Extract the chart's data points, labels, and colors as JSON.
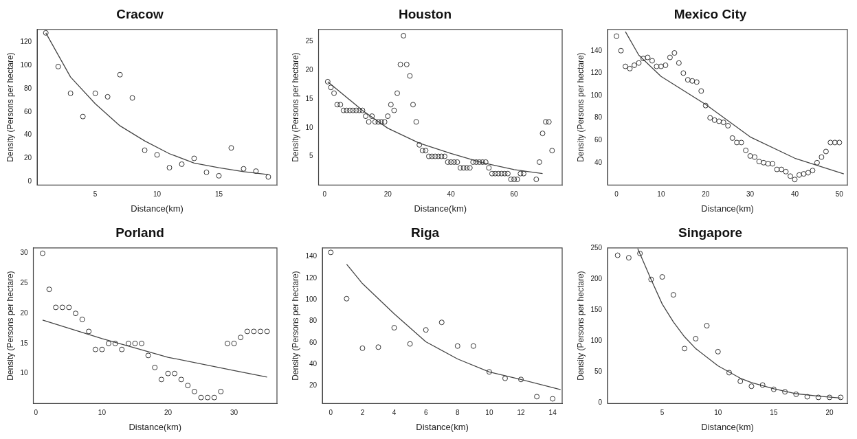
{
  "chart_data": [
    {
      "type": "scatter",
      "title": "Cracow",
      "xlabel": "Distance(km)",
      "ylabel": "Density (Persons per hectare)",
      "xlim": [
        0.3,
        19.7
      ],
      "xticks": [
        5,
        10,
        15
      ],
      "ylim": [
        -3,
        131
      ],
      "yticks": [
        0,
        20,
        40,
        60,
        80,
        100,
        120
      ],
      "grid": false,
      "legend": false,
      "series": [
        {
          "type": "scatter",
          "marker": "circle",
          "color": "#333333",
          "x": [
            1,
            2,
            3,
            4,
            5,
            6,
            7,
            8,
            9,
            10,
            11,
            12,
            13,
            14,
            15,
            16,
            17,
            18,
            19
          ],
          "values": [
            128,
            99,
            76,
            56,
            76,
            73,
            92,
            72,
            27,
            23,
            12,
            15,
            20,
            8,
            5,
            29,
            11,
            9,
            4
          ]
        },
        {
          "type": "line",
          "marker": "none",
          "color": "#444444",
          "x": [
            1,
            3,
            5,
            7,
            9,
            11,
            13,
            15,
            17,
            19
          ],
          "values": [
            128,
            90,
            67,
            48,
            35,
            24,
            16,
            12,
            8.5,
            6
          ]
        }
      ]
    },
    {
      "type": "scatter",
      "title": "Houston",
      "xlabel": "Distance(km)",
      "ylabel": "Density (Persons per hectare)",
      "xlim": [
        -1.9,
        75.2
      ],
      "xticks": [
        0,
        20,
        40,
        60
      ],
      "ylim": [
        0,
        27.1
      ],
      "yticks": [
        5,
        10,
        15,
        20,
        25
      ],
      "grid": false,
      "legend": false,
      "series": [
        {
          "type": "scatter",
          "marker": "circle",
          "color": "#333333",
          "x": [
            1,
            2,
            3,
            4,
            5,
            6,
            7,
            8,
            9,
            10,
            11,
            12,
            13,
            14,
            15,
            16,
            17,
            18,
            19,
            20,
            21,
            22,
            23,
            24,
            25,
            26,
            27,
            28,
            29,
            30,
            31,
            32,
            33,
            34,
            35,
            36,
            37,
            38,
            39,
            40,
            41,
            42,
            43,
            44,
            45,
            46,
            47,
            48,
            49,
            50,
            51,
            52,
            53,
            54,
            55,
            56,
            57,
            58,
            59,
            60,
            61,
            62,
            63,
            67,
            68,
            69,
            70,
            71,
            72
          ],
          "values": [
            18,
            17,
            16,
            14,
            14,
            13,
            13,
            13,
            13,
            13,
            13,
            13,
            12,
            11,
            12,
            11,
            11,
            11,
            11,
            12,
            14,
            13,
            16,
            21,
            26,
            21,
            19,
            14,
            11,
            7,
            6,
            6,
            5,
            5,
            5,
            5,
            5,
            5,
            4,
            4,
            4,
            4,
            3,
            3,
            3,
            3,
            4,
            4,
            4,
            4,
            4,
            3,
            2,
            2,
            2,
            2,
            2,
            2,
            1,
            1,
            1,
            2,
            2,
            1,
            4,
            9,
            11,
            11,
            6
          ]
        },
        {
          "type": "line",
          "marker": "none",
          "color": "#444444",
          "x": [
            1,
            12,
            20,
            30,
            40,
            50,
            60,
            69
          ],
          "values": [
            18,
            13,
            9.9,
            7.3,
            5.5,
            3.9,
            2.7,
            2
          ]
        }
      ]
    },
    {
      "type": "scatter",
      "title": "Mexico City",
      "xlabel": "Distance(km)",
      "ylabel": "Density (Persons per hectare)",
      "xlim": [
        -2,
        51.8
      ],
      "xticks": [
        0,
        10,
        20,
        30,
        40,
        50
      ],
      "ylim": [
        20,
        159
      ],
      "yticks": [
        40,
        60,
        80,
        100,
        120,
        140
      ],
      "grid": false,
      "legend": false,
      "series": [
        {
          "type": "scatter",
          "marker": "circle",
          "color": "#333333",
          "x": [
            0,
            1,
            2,
            3,
            4,
            5,
            6,
            7,
            8,
            9,
            10,
            11,
            12,
            13,
            14,
            15,
            16,
            17,
            18,
            19,
            20,
            21,
            22,
            23,
            24,
            25,
            26,
            27,
            28,
            29,
            30,
            31,
            32,
            33,
            34,
            35,
            36,
            37,
            38,
            39,
            40,
            41,
            42,
            43,
            44,
            45,
            46,
            47,
            48,
            49,
            50
          ],
          "values": [
            153,
            140,
            126,
            124,
            127,
            129,
            133,
            134,
            131,
            126,
            126,
            127,
            134,
            138,
            129,
            120,
            114,
            113,
            112,
            104,
            91,
            80,
            78,
            77,
            76,
            73,
            62,
            58,
            58,
            51,
            46,
            45,
            41,
            40,
            39,
            39,
            34,
            34,
            32,
            28,
            25,
            29,
            30,
            31,
            33,
            40,
            45,
            50,
            58,
            58,
            58
          ]
        },
        {
          "type": "line",
          "marker": "none",
          "color": "#444444",
          "x": [
            2,
            5,
            10,
            20,
            30,
            40,
            51
          ],
          "values": [
            157,
            136,
            117,
            92,
            63,
            44,
            30
          ]
        }
      ]
    },
    {
      "type": "scatter",
      "title": "Porland",
      "xlabel": "Distance(km)",
      "ylabel": "Density (Persons per hectare)",
      "xlim": [
        -0.4,
        36.5
      ],
      "xticks": [
        0,
        10,
        20,
        30
      ],
      "ylim": [
        5,
        30.9
      ],
      "yticks": [
        10,
        15,
        20,
        25,
        30
      ],
      "grid": false,
      "legend": false,
      "series": [
        {
          "type": "scatter",
          "marker": "circle",
          "color": "#333333",
          "x": [
            1,
            2,
            3,
            4,
            5,
            6,
            7,
            8,
            9,
            10,
            11,
            12,
            13,
            14,
            15,
            16,
            17,
            18,
            19,
            20,
            21,
            22,
            23,
            24,
            25,
            26,
            27,
            28,
            29,
            30,
            31,
            32,
            33,
            34,
            35
          ],
          "values": [
            30,
            24,
            21,
            21,
            21,
            20,
            19,
            17,
            14,
            14,
            15,
            15,
            14,
            15,
            15,
            15,
            13,
            11,
            9,
            10,
            10,
            9,
            8,
            7,
            6,
            6,
            6,
            7,
            15,
            15,
            16,
            17,
            17,
            17,
            17
          ]
        },
        {
          "type": "line",
          "marker": "none",
          "color": "#444444",
          "x": [
            1,
            10,
            20,
            30,
            35
          ],
          "values": [
            18.9,
            15.8,
            12.7,
            10.5,
            9.4
          ]
        }
      ]
    },
    {
      "type": "scatter",
      "title": "Riga",
      "xlabel": "Distance(km)",
      "ylabel": "Density (Persons per hectare)",
      "xlim": [
        -0.53,
        14.6
      ],
      "xticks": [
        0,
        2,
        4,
        6,
        8,
        10,
        12,
        14
      ],
      "ylim": [
        3.6,
        148.2
      ],
      "yticks": [
        20,
        40,
        60,
        80,
        100,
        120,
        140
      ],
      "grid": false,
      "legend": false,
      "series": [
        {
          "type": "scatter",
          "marker": "circle",
          "color": "#333333",
          "x": [
            0,
            1,
            2,
            3,
            4,
            5,
            6,
            7,
            8,
            9,
            10,
            11,
            12,
            13,
            14
          ],
          "values": [
            144,
            101,
            55,
            56,
            74,
            59,
            72,
            79,
            57,
            57,
            33,
            27,
            26,
            10,
            8
          ]
        },
        {
          "type": "line",
          "marker": "none",
          "color": "#444444",
          "x": [
            1,
            2,
            4,
            6,
            8,
            10,
            12,
            14.5
          ],
          "values": [
            133,
            115,
            87,
            61,
            45,
            33,
            26,
            16.5
          ]
        }
      ]
    },
    {
      "type": "scatter",
      "title": "Singapore",
      "xlabel": "Distance(km)",
      "ylabel": "Density (Persons per hectare)",
      "xlim": [
        0.1,
        21.6
      ],
      "xticks": [
        5,
        10,
        15,
        20
      ],
      "ylim": [
        -1,
        251
      ],
      "yticks": [
        0,
        50,
        100,
        150,
        200,
        250
      ],
      "grid": false,
      "legend": false,
      "series": [
        {
          "type": "scatter",
          "marker": "circle",
          "color": "#333333",
          "x": [
            1,
            2,
            3,
            4,
            5,
            6,
            7,
            8,
            9,
            10,
            11,
            12,
            13,
            14,
            15,
            16,
            17,
            18,
            19,
            20,
            21
          ],
          "values": [
            239,
            235,
            242,
            200,
            204,
            175,
            88,
            104,
            125,
            83,
            49,
            35,
            27,
            29,
            22,
            18,
            14,
            10,
            9,
            9,
            9
          ]
        },
        {
          "type": "line",
          "marker": "none",
          "color": "#444444",
          "x": [
            2.8,
            4,
            5,
            6,
            7,
            8,
            10,
            12,
            13,
            15,
            17,
            19,
            21
          ],
          "values": [
            250,
            200,
            160,
            131,
            107,
            88,
            60,
            40,
            33,
            23,
            15,
            11,
            8
          ]
        }
      ]
    }
  ]
}
